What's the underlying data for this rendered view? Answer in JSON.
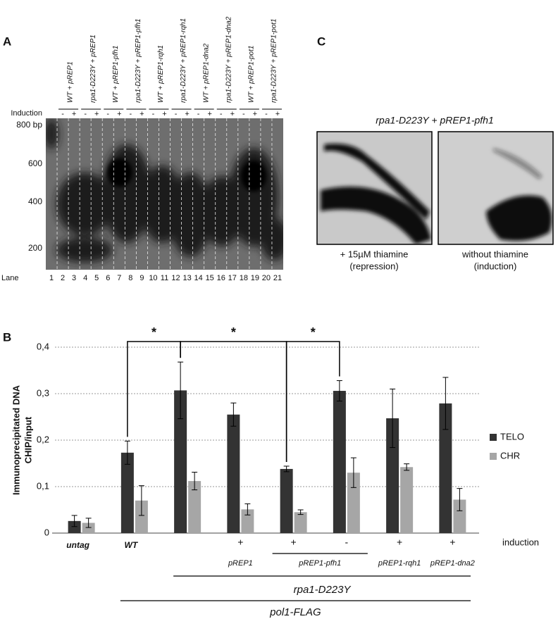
{
  "panel_a": {
    "label": "A",
    "headers": [
      "WT + pREP1",
      "rpa1-D223Y + pREP1",
      "WT + pREP1-pfh1",
      "rpa1-D223Y + pREP1-pfh1",
      "WT + pREP1-rqh1",
      "rpa1-D223Y + pREP1-rqh1",
      "WT + pREP1-dna2",
      "rpa1-D223Y + pREP1-dna2",
      "WT + pREP1-pot1",
      "rpa1-D223Y + pREP1-pot1"
    ],
    "induction_label": "Induction",
    "induction": [
      "-",
      "+",
      "-",
      "+",
      "-",
      "+",
      "-",
      "+",
      "-",
      "+",
      "-",
      "+",
      "-",
      "+",
      "-",
      "+",
      "-",
      "+",
      "-",
      "+"
    ],
    "size_markers": [
      "800 bp",
      "600",
      "400",
      "200"
    ],
    "lane_label": "Lane",
    "lanes": [
      1,
      2,
      3,
      4,
      5,
      6,
      7,
      8,
      9,
      10,
      11,
      12,
      13,
      14,
      15,
      16,
      17,
      18,
      19,
      20,
      21
    ]
  },
  "panel_c": {
    "label": "C",
    "title": "rpa1-D223Y + pREP1-pfh1",
    "captions": [
      [
        "+ 15µM thiamine",
        "(repression)"
      ],
      [
        "without thiamine",
        "(induction)"
      ]
    ]
  },
  "chart_data": {
    "type": "bar",
    "panel_label": "B",
    "ylabel": [
      "Immunoprecipitated DNA",
      "CHIP/input"
    ],
    "ylim": [
      0,
      0.4
    ],
    "yticks": [
      0,
      {
        "value": 0.1,
        "label": "0,1"
      },
      {
        "value": 0.2,
        "label": "0,2"
      },
      {
        "value": 0.3,
        "label": "0,3"
      },
      {
        "value": 0.4,
        "label": "0,4"
      }
    ],
    "grid": true,
    "legend": "right",
    "categories": [
      "untag",
      "WT",
      null,
      null,
      null,
      null,
      null,
      null
    ],
    "induction_label": "induction",
    "induction": [
      null,
      null,
      null,
      "+",
      "+",
      "-",
      "+",
      "+"
    ],
    "plasmids": [
      null,
      null,
      null,
      "pREP1",
      "pREP1-pfh1",
      null,
      "pREP1-rqh1",
      "pREP1-dna2"
    ],
    "genotypes": [
      "rpa1-D223Y",
      "pol1-FLAG"
    ],
    "significance": [
      "*",
      "*",
      "*"
    ],
    "series": [
      {
        "name": "TELO",
        "color": "#333333",
        "values": [
          0.026,
          0.173,
          0.307,
          0.255,
          0.138,
          0.306,
          0.247,
          0.279
        ],
        "errors": [
          0.012,
          0.025,
          0.061,
          0.025,
          0.006,
          0.022,
          0.063,
          0.056
        ]
      },
      {
        "name": "CHR",
        "color": "#a6a6a6",
        "values": [
          0.022,
          0.07,
          0.112,
          0.051,
          0.045,
          0.13,
          0.142,
          0.072
        ],
        "errors": [
          0.01,
          0.032,
          0.019,
          0.012,
          0.005,
          0.032,
          0.007,
          0.024
        ]
      }
    ]
  }
}
